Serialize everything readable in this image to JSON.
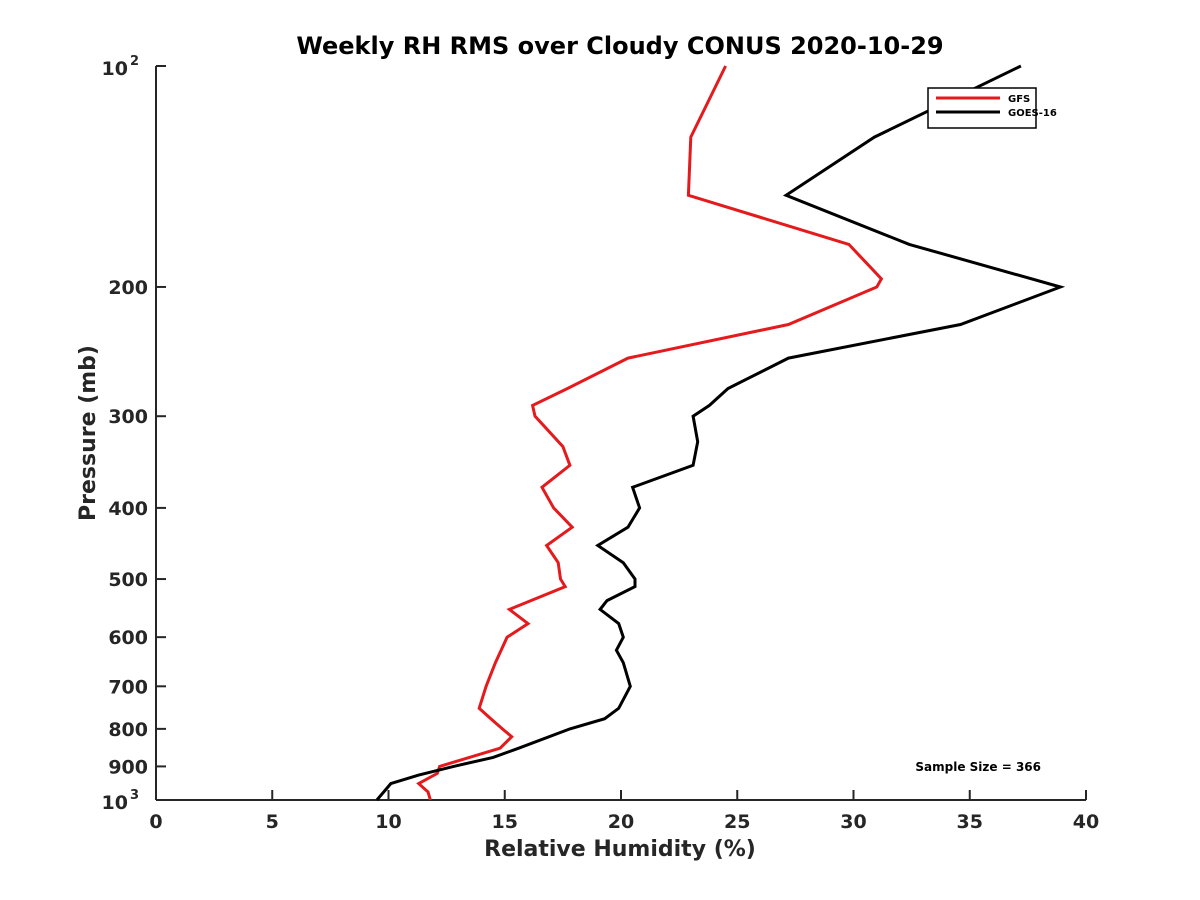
{
  "chart_data": {
    "type": "line",
    "title": "Weekly RH RMS over Cloudy CONUS 2020-10-29",
    "xlabel": "Relative Humidity (%)",
    "ylabel": "Pressure (mb)",
    "xlim": [
      0,
      40
    ],
    "ylim": [
      100,
      1000
    ],
    "yscale": "log",
    "y_reversed": true,
    "grid": false,
    "legend_position": "top-right",
    "x_ticks": [
      "0",
      "5",
      "10",
      "15",
      "20",
      "25",
      "30",
      "35",
      "40"
    ],
    "y_ticks": [
      {
        "value": 100,
        "base": "10",
        "exp": "2"
      },
      {
        "value": 200,
        "label": "200"
      },
      {
        "value": 300,
        "label": "300"
      },
      {
        "value": 400,
        "label": "400"
      },
      {
        "value": 500,
        "label": "500"
      },
      {
        "value": 600,
        "label": "600"
      },
      {
        "value": 700,
        "label": "700"
      },
      {
        "value": 800,
        "label": "800"
      },
      {
        "value": 900,
        "label": "900"
      },
      {
        "value": 1000,
        "base": "10",
        "exp": "3"
      }
    ],
    "annotation": "Sample Size = 366",
    "series": [
      {
        "name": "GFS",
        "color": "#e41a1c",
        "points": [
          [
            24.5,
            100
          ],
          [
            23.0,
            125
          ],
          [
            22.9,
            150
          ],
          [
            29.8,
            175
          ],
          [
            31.2,
            195
          ],
          [
            31.0,
            200
          ],
          [
            27.2,
            225
          ],
          [
            20.3,
            250
          ],
          [
            17.7,
            275
          ],
          [
            16.2,
            290
          ],
          [
            16.3,
            300
          ],
          [
            17.5,
            330
          ],
          [
            17.8,
            350
          ],
          [
            16.6,
            375
          ],
          [
            17.1,
            400
          ],
          [
            17.9,
            425
          ],
          [
            16.8,
            450
          ],
          [
            17.3,
            475
          ],
          [
            17.4,
            500
          ],
          [
            17.6,
            512
          ],
          [
            15.2,
            550
          ],
          [
            16.0,
            575
          ],
          [
            15.1,
            600
          ],
          [
            14.6,
            650
          ],
          [
            14.2,
            700
          ],
          [
            13.9,
            750
          ],
          [
            14.4,
            775
          ],
          [
            14.9,
            800
          ],
          [
            15.3,
            820
          ],
          [
            14.8,
            850
          ],
          [
            12.2,
            900
          ],
          [
            12.1,
            920
          ],
          [
            11.3,
            950
          ],
          [
            11.7,
            975
          ],
          [
            11.8,
            1000
          ]
        ]
      },
      {
        "name": "GOES-16",
        "color": "#000000",
        "points": [
          [
            37.2,
            100
          ],
          [
            30.9,
            125
          ],
          [
            27.1,
            150
          ],
          [
            32.4,
            175
          ],
          [
            38.9,
            200
          ],
          [
            34.6,
            225
          ],
          [
            27.2,
            250
          ],
          [
            24.6,
            275
          ],
          [
            23.8,
            290
          ],
          [
            23.1,
            300
          ],
          [
            23.3,
            325
          ],
          [
            23.1,
            350
          ],
          [
            20.5,
            375
          ],
          [
            20.8,
            400
          ],
          [
            20.3,
            425
          ],
          [
            19.0,
            450
          ],
          [
            20.1,
            475
          ],
          [
            20.6,
            500
          ],
          [
            20.6,
            512
          ],
          [
            19.4,
            535
          ],
          [
            19.1,
            550
          ],
          [
            19.9,
            575
          ],
          [
            20.1,
            600
          ],
          [
            19.8,
            625
          ],
          [
            20.1,
            650
          ],
          [
            20.4,
            700
          ],
          [
            19.9,
            750
          ],
          [
            19.3,
            775
          ],
          [
            17.8,
            800
          ],
          [
            15.6,
            850
          ],
          [
            14.5,
            875
          ],
          [
            12.8,
            900
          ],
          [
            11.3,
            925
          ],
          [
            10.1,
            950
          ],
          [
            9.5,
            1000
          ]
        ]
      }
    ]
  }
}
